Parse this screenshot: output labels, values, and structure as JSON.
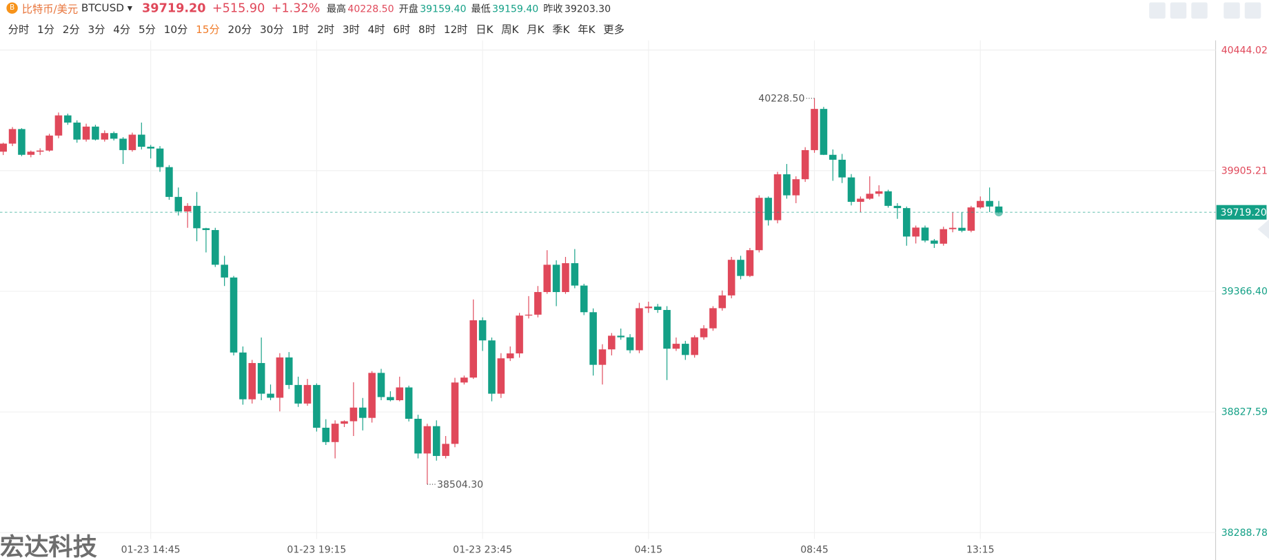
{
  "header": {
    "name": "比特币/美元",
    "symbol": "BTCUSD",
    "price": "39719.20",
    "change": "+515.90",
    "change_pct": "+1.32%",
    "stats": [
      {
        "label": "最高",
        "value": "40228.50"
      },
      {
        "label": "开盘",
        "value": "39159.40"
      },
      {
        "label": "最低",
        "value": "39159.40"
      },
      {
        "label": "昨收",
        "value": "39203.30"
      }
    ]
  },
  "timeframes": [
    "分时",
    "1分",
    "2分",
    "3分",
    "4分",
    "5分",
    "10分",
    "15分",
    "20分",
    "30分",
    "1时",
    "2时",
    "3时",
    "4时",
    "6时",
    "8时",
    "12时",
    "日K",
    "周K",
    "月K",
    "季K",
    "年K",
    "更多"
  ],
  "active_timeframe": "15分",
  "watermark": "宏达科技",
  "chart_data": {
    "type": "candlestick",
    "up_color": "#e0485a",
    "down_color": "#13a086",
    "grid": true,
    "x": [
      null,
      null,
      null,
      null,
      null,
      null,
      null,
      null,
      null,
      null,
      null,
      null,
      null,
      null,
      null,
      null,
      "01-23 14:45",
      null,
      null,
      null,
      null,
      null,
      null,
      null,
      null,
      null,
      null,
      null,
      null,
      null,
      null,
      null,
      null,
      null,
      "01-23 19:15",
      null,
      null,
      null,
      null,
      null,
      null,
      null,
      null,
      null,
      null,
      null,
      null,
      null,
      null,
      null,
      null,
      null,
      "01-23 23:45",
      null,
      null,
      null,
      null,
      null,
      null,
      null,
      null,
      null,
      null,
      null,
      null,
      null,
      null,
      null,
      null,
      null,
      "04:15",
      null,
      null,
      null,
      null,
      null,
      null,
      null,
      null,
      null,
      null,
      null,
      null,
      null,
      null,
      null,
      null,
      null,
      "08:45",
      null,
      null,
      null,
      null,
      null,
      null,
      null,
      null,
      null,
      null,
      null,
      null,
      null,
      null,
      null,
      null,
      null,
      "13:15",
      null,
      null
    ],
    "open": [
      39990,
      40026,
      40091,
      39976,
      39990,
      39995,
      40062,
      40152,
      40120,
      40044,
      40102,
      40044,
      40073,
      40048,
      39997,
      40066,
      40012,
      40004,
      39921,
      39788,
      39723,
      39748,
      39648,
      39640,
      39485,
      39428,
      39093,
      38884,
      39046,
      38909,
      38891,
      39071,
      38948,
      38865,
      38948,
      38757,
      38693,
      38775,
      38786,
      38847,
      38801,
      39002,
      38894,
      38880,
      38937,
      38797,
      38642,
      38764,
      38631,
      38685,
      38959,
      38981,
      39237,
      39147,
      38909,
      39067,
      39089,
      39258,
      39262,
      39363,
      39485,
      39363,
      39492,
      39392,
      39273,
      39038,
      39107,
      39168,
      39161,
      39103,
      39291,
      39298,
      39283,
      39110,
      39132,
      39082,
      39161,
      39201,
      39291,
      39348,
      39507,
      39435,
      39550,
      39784,
      39684,
      39889,
      39795,
      39867,
      39997,
      40181,
      39976,
      39954,
      39875,
      39766,
      39780,
      39802,
      39813,
      39748,
      39738,
      39611,
      39651,
      39593,
      39579,
      39644,
      39650,
      39637,
      39741,
      39770,
      39745
    ],
    "high": [
      40030,
      40100,
      40095,
      39995,
      40005,
      40070,
      40165,
      40160,
      40130,
      40115,
      40110,
      40085,
      40080,
      40055,
      40075,
      40120,
      40020,
      40015,
      39930,
      39830,
      39760,
      39810,
      39650,
      39650,
      39525,
      39435,
      39120,
      39060,
      39160,
      38950,
      39090,
      39095,
      38985,
      38975,
      38955,
      38795,
      38790,
      38790,
      38960,
      38890,
      39010,
      39020,
      38920,
      38985,
      38945,
      38815,
      38775,
      38790,
      38720,
      38980,
      38990,
      39330,
      39250,
      39160,
      39090,
      39120,
      39270,
      39345,
      39390,
      39550,
      39505,
      39520,
      39555,
      39400,
      39290,
      39130,
      39180,
      39200,
      39175,
      39315,
      39320,
      39310,
      39300,
      39160,
      39145,
      39170,
      39215,
      39300,
      39370,
      39520,
      39525,
      39560,
      39795,
      39790,
      39900,
      39935,
      39880,
      40010,
      40228.5,
      40190,
      40000,
      39980,
      39890,
      39790,
      39880,
      39840,
      39820,
      39760,
      39745,
      39660,
      39660,
      39600,
      39655,
      39720,
      39720,
      39748,
      39790,
      39830,
      39770
    ],
    "low": [
      39975,
      40015,
      39970,
      39965,
      39975,
      39990,
      40050,
      40110,
      40030,
      40035,
      40040,
      40035,
      40040,
      39935,
      39990,
      40000,
      39960,
      39900,
      39775,
      39705,
      39650,
      39590,
      39540,
      39475,
      39390,
      39080,
      38860,
      38865,
      38880,
      38880,
      38830,
      38930,
      38850,
      38855,
      38740,
      38680,
      38620,
      38760,
      38720,
      38745,
      38780,
      38880,
      38875,
      38875,
      38785,
      38620,
      38504.3,
      38610,
      38620,
      38670,
      38950,
      38975,
      39100,
      38875,
      38890,
      39055,
      39070,
      39245,
      39250,
      39355,
      39300,
      39355,
      39380,
      39260,
      38990,
      38950,
      39080,
      39150,
      39090,
      39090,
      39270,
      39270,
      38970,
      39100,
      39060,
      39070,
      39150,
      39190,
      39280,
      39335,
      39420,
      39430,
      39540,
      39660,
      39670,
      39780,
      39760,
      39855,
      39985,
      39975,
      39860,
      39850,
      39750,
      39720,
      39775,
      39790,
      39740,
      39690,
      39570,
      39580,
      39585,
      39560,
      39570,
      39630,
      39630,
      39630,
      39735,
      39720,
      39715
    ],
    "close": [
      40026,
      40091,
      39976,
      39990,
      39995,
      40062,
      40152,
      40120,
      40044,
      40102,
      40044,
      40073,
      40048,
      39997,
      40066,
      40012,
      40004,
      39921,
      39788,
      39723,
      39748,
      39648,
      39640,
      39485,
      39428,
      39093,
      38884,
      39046,
      38909,
      38891,
      39071,
      38948,
      38865,
      38948,
      38757,
      38693,
      38775,
      38786,
      38847,
      38801,
      39002,
      38894,
      38880,
      38937,
      38797,
      38642,
      38764,
      38631,
      38685,
      38959,
      38981,
      39237,
      39147,
      38909,
      39067,
      39089,
      39258,
      39262,
      39363,
      39485,
      39363,
      39492,
      39392,
      39273,
      39038,
      39107,
      39168,
      39161,
      39103,
      39291,
      39298,
      39283,
      39110,
      39132,
      39082,
      39161,
      39201,
      39291,
      39348,
      39507,
      39435,
      39550,
      39784,
      39684,
      39889,
      39795,
      39867,
      39997,
      40181,
      39976,
      39954,
      39875,
      39766,
      39780,
      39802,
      39813,
      39748,
      39738,
      39611,
      39651,
      39593,
      39579,
      39644,
      39650,
      39637,
      39741,
      39770,
      39745,
      39719.2
    ],
    "ylim": [
      38288.78,
      40444.02
    ],
    "yticks": [
      38288.78,
      38827.59,
      {
        "value": 39366.4,
        "label": "39366.40"
      },
      39905.21,
      40444.02
    ],
    "last_price": {
      "value": 39719.2,
      "label": "39719.20"
    },
    "annotations": [
      {
        "value": 40228.5,
        "label": "40228.50",
        "kind": "high"
      },
      {
        "value": 38504.3,
        "label": "38504.30",
        "kind": "low"
      }
    ]
  }
}
